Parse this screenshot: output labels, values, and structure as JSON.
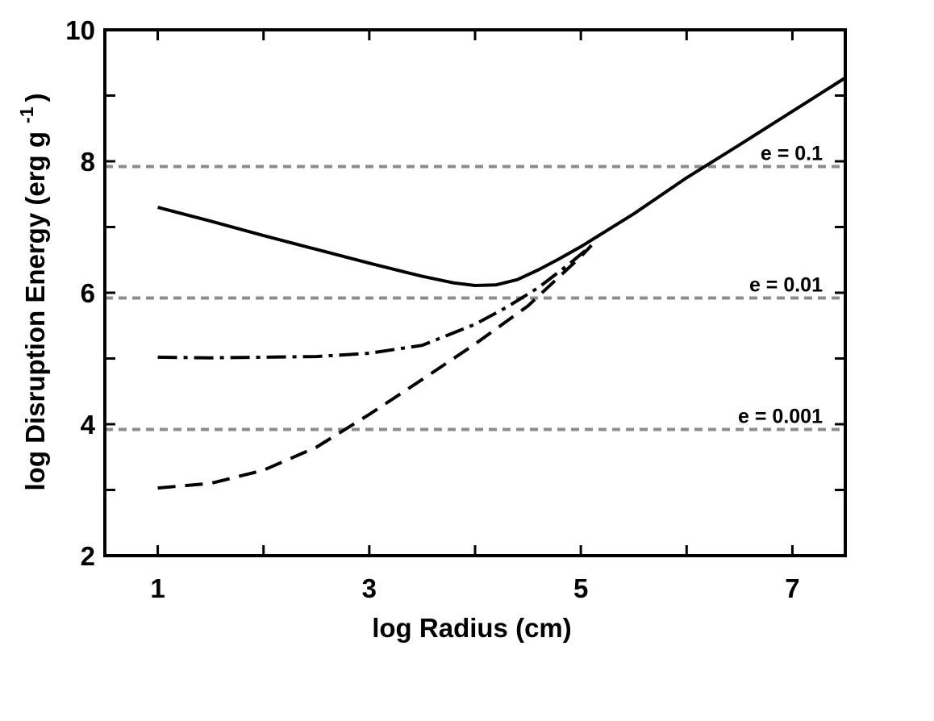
{
  "chart_data": {
    "type": "line",
    "xlabel": "log Radius (cm)",
    "ylabel_main": "log Disruption Energy (erg g",
    "ylabel_sup": "-1",
    "ylabel_close": ")",
    "xlim": [
      0.5,
      7.5
    ],
    "ylim": [
      2,
      10
    ],
    "xticks": [
      1,
      3,
      5,
      7
    ],
    "yticks": [
      2,
      4,
      6,
      8,
      10
    ],
    "x_minor_ticks": [
      1,
      2,
      3,
      4,
      5,
      6,
      7
    ],
    "y_minor_ticks": [
      3,
      5,
      7,
      9
    ],
    "grid": false,
    "series": [
      {
        "style": "solid",
        "x": [
          1.0,
          1.5,
          2.0,
          2.5,
          3.0,
          3.5,
          3.8,
          4.0,
          4.2,
          4.4,
          4.6,
          4.8,
          5.0,
          5.5,
          6.0,
          6.5,
          7.0,
          7.5
        ],
        "y": [
          7.3,
          7.09,
          6.87,
          6.66,
          6.45,
          6.25,
          6.15,
          6.11,
          6.12,
          6.2,
          6.35,
          6.52,
          6.7,
          7.2,
          7.75,
          8.25,
          8.76,
          9.27
        ]
      },
      {
        "style": "dashdot",
        "x": [
          1.0,
          1.5,
          2.0,
          2.5,
          3.0,
          3.5,
          4.0,
          4.3,
          4.6,
          4.9,
          5.1
        ],
        "y": [
          5.02,
          5.01,
          5.02,
          5.03,
          5.08,
          5.2,
          5.52,
          5.78,
          6.08,
          6.45,
          6.72
        ]
      },
      {
        "style": "dashed",
        "x": [
          1.0,
          1.5,
          2.0,
          2.5,
          3.0,
          3.5,
          4.0,
          4.5,
          5.0,
          5.1
        ],
        "y": [
          3.03,
          3.1,
          3.3,
          3.65,
          4.15,
          4.68,
          5.22,
          5.8,
          6.55,
          6.72
        ]
      }
    ],
    "reference_lines": [
      {
        "y": 7.92,
        "label": "e = 0.1",
        "color": "#8c8c8c"
      },
      {
        "y": 5.92,
        "label": "e = 0.01",
        "color": "#8c8c8c"
      },
      {
        "y": 3.92,
        "label": "e = 0.001",
        "color": "#8c8c8c"
      }
    ]
  }
}
